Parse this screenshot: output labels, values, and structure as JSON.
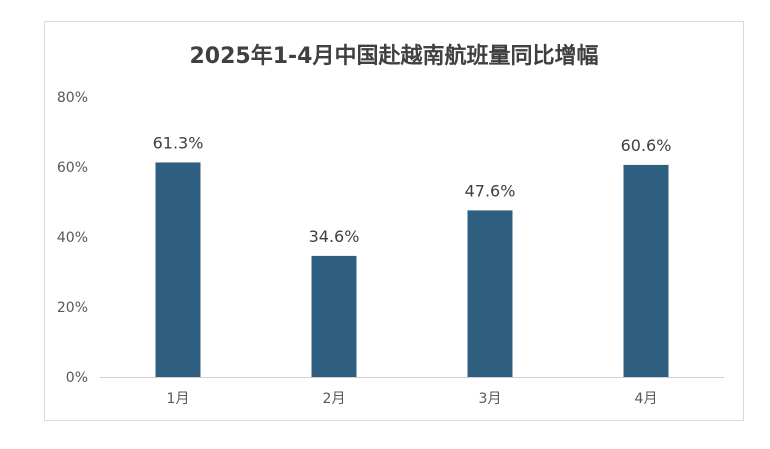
{
  "chart_data": {
    "type": "bar",
    "title": "2025年1-4月中国赴越南航班量同比增幅",
    "categories": [
      "1月",
      "2月",
      "3月",
      "4月"
    ],
    "values": [
      61.3,
      34.6,
      47.6,
      60.6
    ],
    "data_labels": [
      "61.3%",
      "34.6%",
      "47.6%",
      "60.6%"
    ],
    "ylim": [
      0,
      80
    ],
    "yticks": [
      0,
      20,
      40,
      60,
      80
    ],
    "ytick_labels": [
      "0%",
      "20%",
      "40%",
      "60%",
      "80%"
    ],
    "xlabel": "",
    "ylabel": "",
    "grid": false,
    "legend": "none",
    "bar_color": "#2e5e80"
  }
}
